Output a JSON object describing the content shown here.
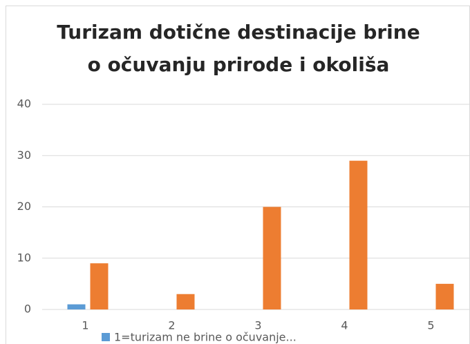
{
  "chart_data": {
    "type": "bar",
    "title": [
      "Turizam dotične destinacije brine",
      "o očuvanju prirode i okoliša"
    ],
    "categories": [
      "1",
      "2",
      "3",
      "4",
      "5"
    ],
    "series": [
      {
        "name": "1=turizam ne brine o očuvanje...",
        "color": "#5b9bd5",
        "values": [
          1,
          0,
          0,
          0,
          0
        ]
      },
      {
        "color": "#ed7d31",
        "values": [
          9,
          3,
          20,
          29,
          5
        ]
      }
    ],
    "ylim": [
      0,
      40
    ],
    "yticks": [
      0,
      10,
      20,
      30,
      40
    ],
    "grid": true,
    "legend": "bottom"
  }
}
